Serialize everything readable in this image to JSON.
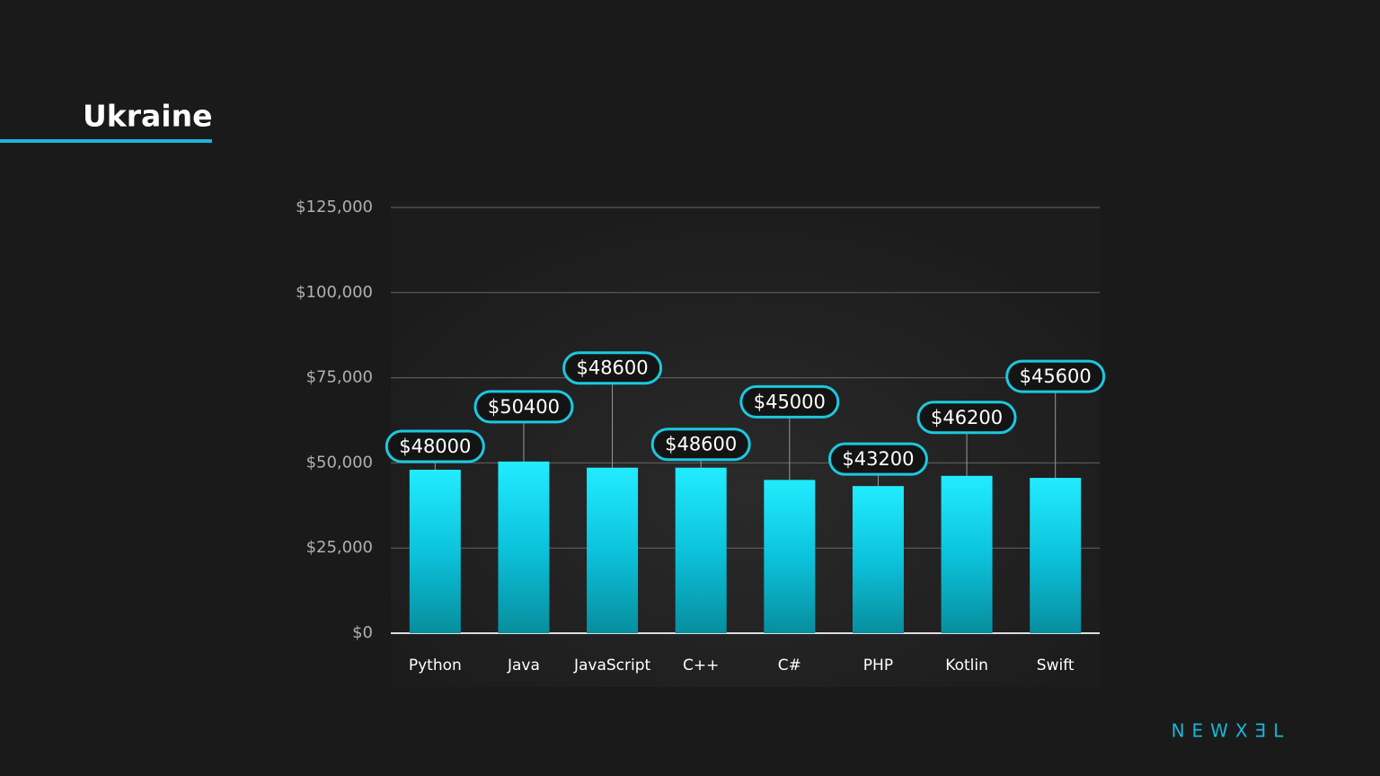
{
  "brand": "NEWXƎL",
  "chart_data": {
    "type": "bar",
    "title": "Ukraine",
    "categories": [
      "Python",
      "Java",
      "JavaScript",
      "C++",
      "C#",
      "PHP",
      "Kotlin",
      "Swift"
    ],
    "values": [
      48000,
      50400,
      48600,
      48600,
      45000,
      43200,
      46200,
      45600
    ],
    "value_labels": [
      "$48000",
      "$50400",
      "$48600",
      "$48600",
      "$45000",
      "$43200",
      "$46200",
      "$45600"
    ],
    "color": "#16d6ee",
    "ylim": [
      0,
      125000
    ],
    "yticks": [
      {
        "value": 0,
        "label": "$0"
      },
      {
        "value": 25000,
        "label": "$25,000"
      },
      {
        "value": 50000,
        "label": "$50,000"
      },
      {
        "value": 75000,
        "label": "$75,000"
      },
      {
        "value": 100000,
        "label": "$100,000"
      },
      {
        "value": 125000,
        "label": "$125,000"
      }
    ],
    "grid": true
  }
}
